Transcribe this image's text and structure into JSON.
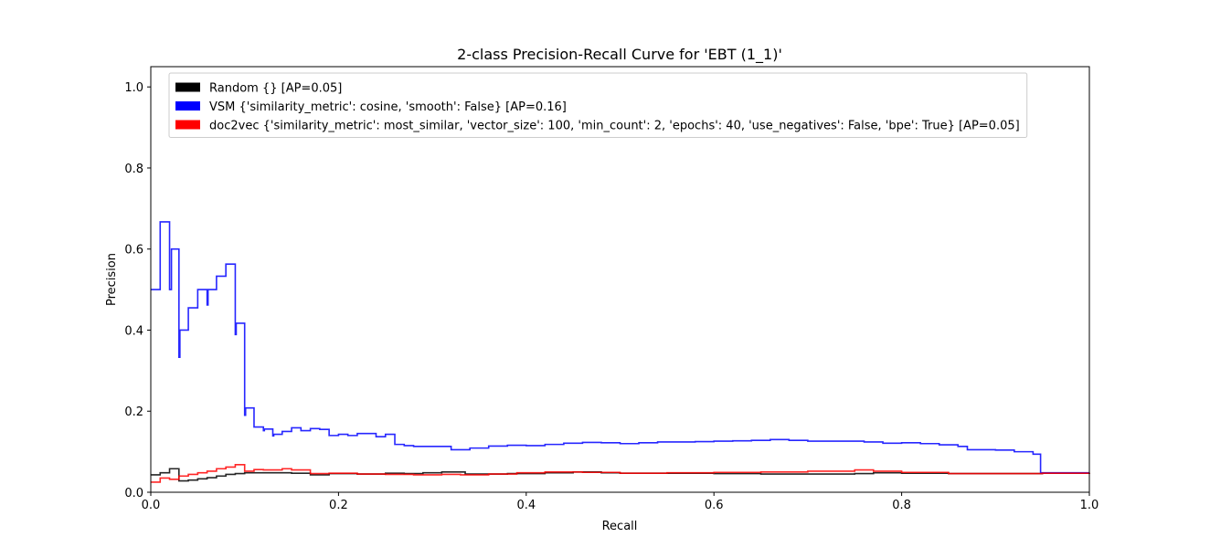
{
  "chart_data": {
    "type": "line",
    "title": "2-class Precision-Recall Curve for 'EBT (1_1)'",
    "xlabel": "Recall",
    "ylabel": "Precision",
    "xlim": [
      0.0,
      1.0
    ],
    "ylim": [
      0.0,
      1.05
    ],
    "x_ticks": [
      0.0,
      0.2,
      0.4,
      0.6,
      0.8,
      1.0
    ],
    "x_tick_labels": [
      "0.0",
      "0.2",
      "0.4",
      "0.6",
      "0.8",
      "1.0"
    ],
    "y_ticks": [
      0.0,
      0.2,
      0.4,
      0.6,
      0.8,
      1.0
    ],
    "y_tick_labels": [
      "0.0",
      "0.2",
      "0.4",
      "0.6",
      "0.8",
      "1.0"
    ],
    "grid": false,
    "legend_position": "top-left",
    "series": [
      {
        "name": "Random {} [AP=0.05]",
        "color": "#000000",
        "points": [
          [
            0.0,
            0.043
          ],
          [
            0.01,
            0.048
          ],
          [
            0.02,
            0.058
          ],
          [
            0.03,
            0.028
          ],
          [
            0.04,
            0.03
          ],
          [
            0.05,
            0.033
          ],
          [
            0.06,
            0.036
          ],
          [
            0.07,
            0.04
          ],
          [
            0.08,
            0.044
          ],
          [
            0.09,
            0.046
          ],
          [
            0.1,
            0.048
          ],
          [
            0.12,
            0.048
          ],
          [
            0.15,
            0.047
          ],
          [
            0.17,
            0.043
          ],
          [
            0.19,
            0.046
          ],
          [
            0.22,
            0.045
          ],
          [
            0.25,
            0.047
          ],
          [
            0.27,
            0.046
          ],
          [
            0.29,
            0.048
          ],
          [
            0.31,
            0.05
          ],
          [
            0.335,
            0.045
          ],
          [
            0.38,
            0.046
          ],
          [
            0.42,
            0.048
          ],
          [
            0.45,
            0.05
          ],
          [
            0.48,
            0.048
          ],
          [
            0.5,
            0.047
          ],
          [
            0.55,
            0.047
          ],
          [
            0.6,
            0.046
          ],
          [
            0.65,
            0.045
          ],
          [
            0.7,
            0.045
          ],
          [
            0.75,
            0.046
          ],
          [
            0.77,
            0.048
          ],
          [
            0.8,
            0.047
          ],
          [
            0.85,
            0.046
          ],
          [
            0.9,
            0.046
          ],
          [
            0.95,
            0.047
          ],
          [
            1.0,
            0.048
          ]
        ]
      },
      {
        "name": "VSM {'similarity_metric': cosine, 'smooth': False} [AP=0.16]",
        "color": "#0000ff",
        "points": [
          [
            0.0,
            0.5
          ],
          [
            0.01,
            0.667
          ],
          [
            0.02,
            0.5
          ],
          [
            0.022,
            0.6
          ],
          [
            0.03,
            0.333
          ],
          [
            0.031,
            0.4
          ],
          [
            0.04,
            0.455
          ],
          [
            0.05,
            0.5
          ],
          [
            0.06,
            0.462
          ],
          [
            0.061,
            0.5
          ],
          [
            0.07,
            0.533
          ],
          [
            0.08,
            0.563
          ],
          [
            0.09,
            0.389
          ],
          [
            0.091,
            0.417
          ],
          [
            0.1,
            0.19
          ],
          [
            0.101,
            0.208
          ],
          [
            0.11,
            0.161
          ],
          [
            0.12,
            0.152
          ],
          [
            0.121,
            0.156
          ],
          [
            0.13,
            0.139
          ],
          [
            0.131,
            0.143
          ],
          [
            0.14,
            0.15
          ],
          [
            0.15,
            0.159
          ],
          [
            0.16,
            0.152
          ],
          [
            0.17,
            0.157
          ],
          [
            0.18,
            0.155
          ],
          [
            0.19,
            0.14
          ],
          [
            0.2,
            0.143
          ],
          [
            0.21,
            0.14
          ],
          [
            0.22,
            0.145
          ],
          [
            0.24,
            0.137
          ],
          [
            0.25,
            0.143
          ],
          [
            0.26,
            0.118
          ],
          [
            0.27,
            0.115
          ],
          [
            0.28,
            0.113
          ],
          [
            0.32,
            0.105
          ],
          [
            0.34,
            0.109
          ],
          [
            0.36,
            0.114
          ],
          [
            0.38,
            0.116
          ],
          [
            0.4,
            0.115
          ],
          [
            0.42,
            0.118
          ],
          [
            0.44,
            0.121
          ],
          [
            0.46,
            0.123
          ],
          [
            0.48,
            0.122
          ],
          [
            0.5,
            0.12
          ],
          [
            0.52,
            0.122
          ],
          [
            0.54,
            0.124
          ],
          [
            0.58,
            0.125
          ],
          [
            0.6,
            0.126
          ],
          [
            0.62,
            0.127
          ],
          [
            0.64,
            0.128
          ],
          [
            0.66,
            0.13
          ],
          [
            0.68,
            0.128
          ],
          [
            0.7,
            0.126
          ],
          [
            0.72,
            0.126
          ],
          [
            0.76,
            0.124
          ],
          [
            0.78,
            0.121
          ],
          [
            0.8,
            0.122
          ],
          [
            0.82,
            0.12
          ],
          [
            0.84,
            0.117
          ],
          [
            0.86,
            0.113
          ],
          [
            0.87,
            0.105
          ],
          [
            0.9,
            0.104
          ],
          [
            0.92,
            0.1
          ],
          [
            0.94,
            0.094
          ],
          [
            0.948,
            0.048
          ],
          [
            1.0,
            0.048
          ]
        ]
      },
      {
        "name": "doc2vec {'similarity_metric': most_similar, 'vector_size': 100, 'min_count': 2, 'epochs': 40, 'use_negatives': False, 'bpe': True} [AP=0.05]",
        "color": "#ff0000",
        "points": [
          [
            0.0,
            0.025
          ],
          [
            0.01,
            0.035
          ],
          [
            0.02,
            0.032
          ],
          [
            0.03,
            0.04
          ],
          [
            0.04,
            0.044
          ],
          [
            0.05,
            0.048
          ],
          [
            0.06,
            0.052
          ],
          [
            0.07,
            0.058
          ],
          [
            0.08,
            0.062
          ],
          [
            0.09,
            0.068
          ],
          [
            0.1,
            0.052
          ],
          [
            0.11,
            0.056
          ],
          [
            0.12,
            0.055
          ],
          [
            0.14,
            0.058
          ],
          [
            0.15,
            0.055
          ],
          [
            0.17,
            0.046
          ],
          [
            0.19,
            0.047
          ],
          [
            0.22,
            0.045
          ],
          [
            0.25,
            0.044
          ],
          [
            0.28,
            0.043
          ],
          [
            0.31,
            0.044
          ],
          [
            0.33,
            0.043
          ],
          [
            0.36,
            0.045
          ],
          [
            0.39,
            0.048
          ],
          [
            0.42,
            0.05
          ],
          [
            0.46,
            0.049
          ],
          [
            0.5,
            0.047
          ],
          [
            0.55,
            0.048
          ],
          [
            0.6,
            0.049
          ],
          [
            0.65,
            0.05
          ],
          [
            0.7,
            0.052
          ],
          [
            0.75,
            0.055
          ],
          [
            0.77,
            0.052
          ],
          [
            0.8,
            0.049
          ],
          [
            0.85,
            0.046
          ],
          [
            0.9,
            0.046
          ],
          [
            0.95,
            0.047
          ],
          [
            1.0,
            0.048
          ]
        ]
      }
    ]
  }
}
